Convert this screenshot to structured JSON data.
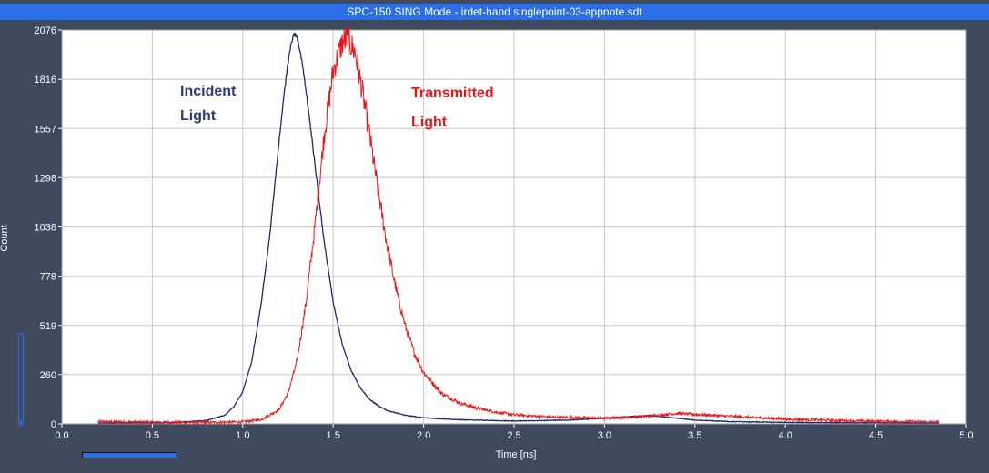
{
  "window": {
    "title": "SPC-150  SING Mode - irdet-hand singlepoint-03-appnote.sdt"
  },
  "colors": {
    "incident": "#1f2a6b",
    "transmitted": "#e8161b",
    "frame": "#404a5e",
    "grid": "#c8c8c8",
    "titlebar": "#2b6fe6"
  },
  "annotations": {
    "incident_line1": "Incident",
    "incident_line2": "Light",
    "transmitted_line1": "Transmitted",
    "transmitted_line2": "Light"
  },
  "chart_data": {
    "type": "line",
    "xlabel": "Time [ns]",
    "ylabel": "Count",
    "xlim": [
      0,
      5.0
    ],
    "ylim": [
      0,
      2076
    ],
    "x_ticks": [
      "0.0",
      "0.5",
      "1.0",
      "1.5",
      "2.0",
      "2.5",
      "3.0",
      "3.5",
      "4.0",
      "4.5",
      "5.0"
    ],
    "y_ticks": [
      "0",
      "260",
      "519",
      "778",
      "1038",
      "1298",
      "1557",
      "1816",
      "2076"
    ],
    "grid": true,
    "series": [
      {
        "key": "incident",
        "x": [
          0.2,
          0.6,
          0.8,
          0.9,
          0.95,
          1.0,
          1.05,
          1.1,
          1.15,
          1.2,
          1.23,
          1.26,
          1.28,
          1.3,
          1.33,
          1.36,
          1.4,
          1.45,
          1.5,
          1.55,
          1.6,
          1.65,
          1.7,
          1.75,
          1.8,
          1.9,
          2.0,
          2.2,
          2.5,
          2.8,
          3.0,
          3.1,
          3.2,
          3.25,
          3.3,
          3.4,
          3.5,
          3.7,
          4.0,
          4.4,
          4.85
        ],
        "y": [
          5,
          6,
          18,
          45,
          90,
          170,
          330,
          620,
          1000,
          1480,
          1760,
          1960,
          2058,
          2040,
          1900,
          1680,
          1360,
          960,
          640,
          420,
          280,
          190,
          130,
          95,
          70,
          45,
          32,
          22,
          15,
          20,
          30,
          36,
          42,
          44,
          40,
          30,
          20,
          12,
          8,
          6,
          5
        ]
      },
      {
        "key": "transmitted",
        "x": [
          0.2,
          0.6,
          0.8,
          1.0,
          1.1,
          1.2,
          1.25,
          1.3,
          1.35,
          1.4,
          1.45,
          1.5,
          1.55,
          1.58,
          1.62,
          1.66,
          1.7,
          1.75,
          1.8,
          1.85,
          1.9,
          1.95,
          2.0,
          2.1,
          2.2,
          2.3,
          2.4,
          2.5,
          2.7,
          3.0,
          3.2,
          3.4,
          3.5,
          3.7,
          4.0,
          4.4,
          4.85
        ],
        "y": [
          12,
          8,
          8,
          10,
          22,
          75,
          160,
          330,
          640,
          1050,
          1520,
          1860,
          2010,
          2030,
          1960,
          1760,
          1530,
          1220,
          930,
          700,
          510,
          370,
          270,
          160,
          110,
          82,
          62,
          48,
          36,
          30,
          38,
          55,
          50,
          40,
          25,
          15,
          10
        ]
      }
    ]
  }
}
